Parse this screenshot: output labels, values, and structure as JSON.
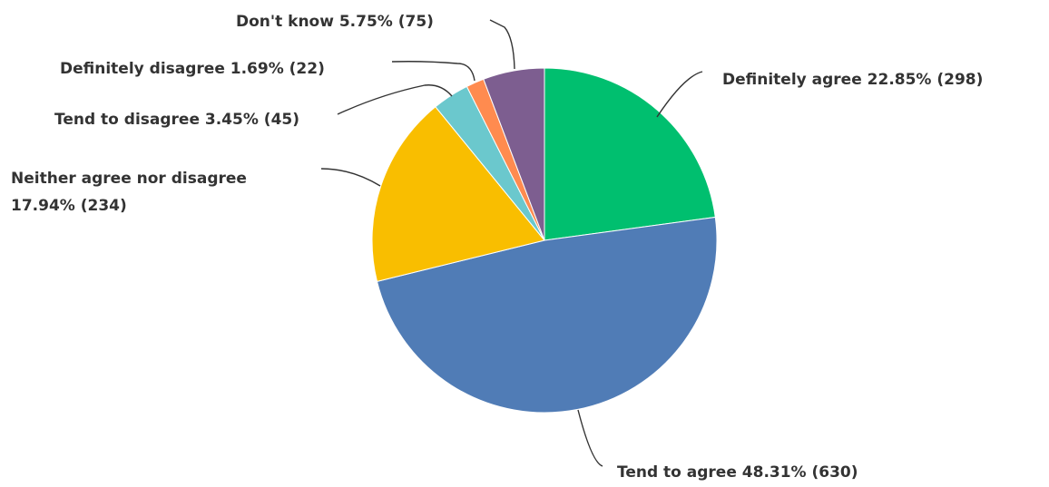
{
  "chart_data": {
    "type": "pie",
    "title": "",
    "slices": [
      {
        "label": "Definitely agree",
        "percent": "22.85%",
        "count": "(298)",
        "value": 298,
        "color": "#00bf6f"
      },
      {
        "label": "Tend to agree",
        "percent": "48.31%",
        "count": "(630)",
        "value": 630,
        "color": "#507cb6"
      },
      {
        "label": "Neither agree nor disagree",
        "percent": "17.94%",
        "count": "(234)",
        "value": 234,
        "color": "#f9be00"
      },
      {
        "label": "Tend to disagree",
        "percent": "3.45%",
        "count": "(45)",
        "value": 45,
        "color": "#6bc8cd"
      },
      {
        "label": "Definitely disagree",
        "percent": "1.69%",
        "count": "(22)",
        "value": 22,
        "color": "#ff8b4f"
      },
      {
        "label": "Don't know",
        "percent": "5.75%",
        "count": "(75)",
        "value": 75,
        "color": "#7d5e90"
      }
    ]
  }
}
